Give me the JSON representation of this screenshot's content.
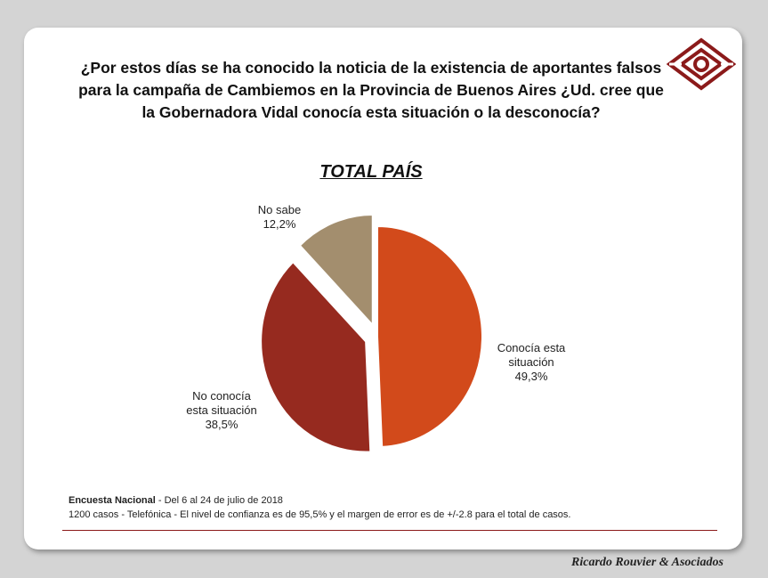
{
  "header": {
    "question": "¿Por estos días se ha conocido la noticia de la existencia de aportantes falsos para la campaña de Cambiemos en la Provincia de Buenos Aires ¿Ud. cree que la Gobernadora Vidal conocía esta situación o la desconocía?",
    "subtitle": "TOTAL PAÍS"
  },
  "chart_data": {
    "type": "pie",
    "title": "TOTAL PAÍS",
    "slices": [
      {
        "label_lines": [
          "Conocía esta",
          "situación",
          "49,3%"
        ],
        "value": 49.3,
        "color": "#d24a1b",
        "exploded": false
      },
      {
        "label_lines": [
          "No conocía",
          "esta situación",
          "38,5%"
        ],
        "value": 38.5,
        "color": "#962a1f",
        "exploded": true
      },
      {
        "label_lines": [
          "No sabe",
          "12,2%"
        ],
        "value": 12.2,
        "color": "#a38e6e",
        "exploded": true
      }
    ]
  },
  "footer": {
    "survey_name": "Encuesta Nacional",
    "survey_dates": " - Del 6 al 24 de julio de 2018",
    "survey_details": "1200 casos - Telefónica  - El nivel de confianza es de 95,5% y el margen de error es de +/-2.8 para el total de casos."
  },
  "brand": "Ricardo Rouvier & Asociados",
  "colors": {
    "logo": "#8b1a1a",
    "divider": "#8b1a1a"
  }
}
